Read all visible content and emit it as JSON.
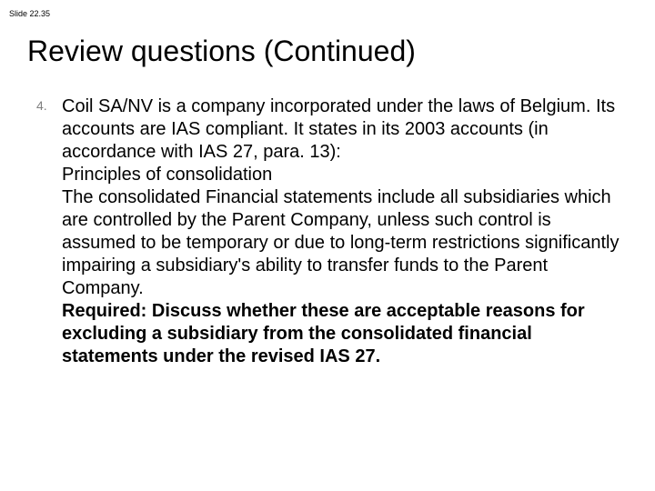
{
  "slide": {
    "number": "Slide 22.35",
    "title": "Review questions (Continued)",
    "list_marker": "4.",
    "para1": "Coil SA/NV is a company incorporated under the laws of Belgium. Its accounts are IAS compliant. It states in its 2003 accounts (in accordance with IAS 27, para. 13):",
    "para2": "Principles of consolidation",
    "para3": "The consolidated Financial statements include all subsidiaries which are controlled by the Parent Company, unless such control is assumed to be temporary or due to long-term restrictions significantly impairing a subsidiary's ability to transfer funds to the Parent Company.",
    "para4": "Required: Discuss whether these are acceptable reasons for excluding a subsidiary from the consolidated financial statements under the revised IAS 27."
  },
  "colors": {
    "background": "#ffffff",
    "text": "#000000",
    "marker": "#808080"
  }
}
